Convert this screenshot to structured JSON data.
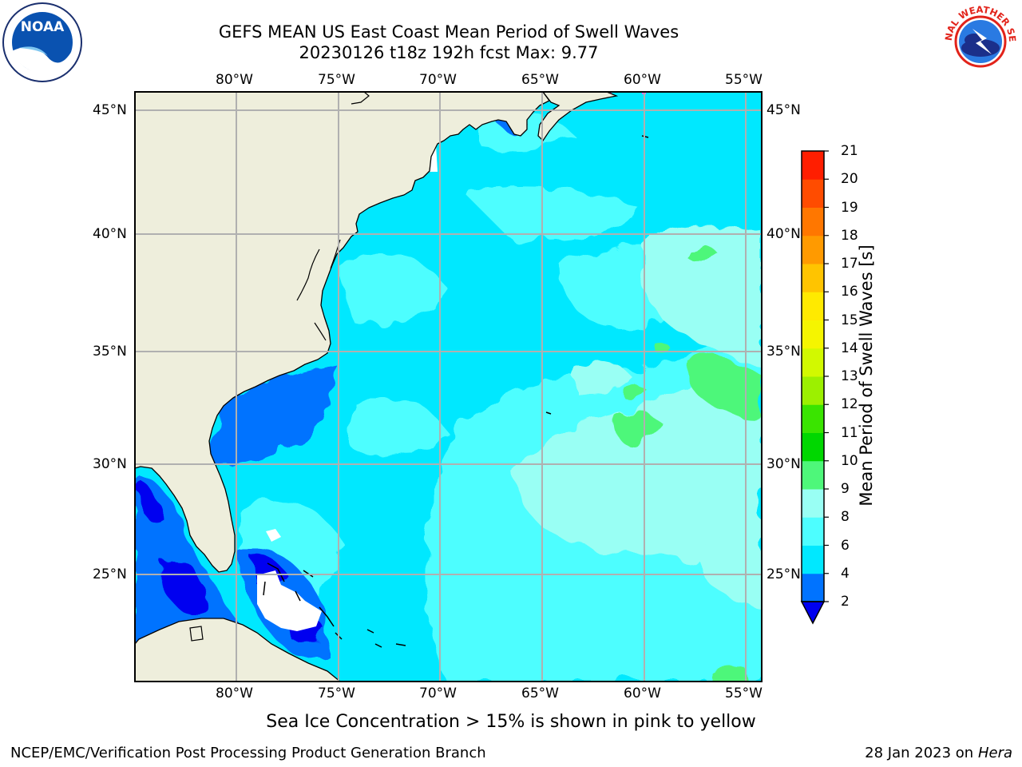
{
  "title": {
    "line1": "GEFS MEAN US East Coast Mean Period of Swell Waves",
    "line2": "20230126 t18z 192h fcst   Max: 9.77"
  },
  "map": {
    "lon_range": [
      -85,
      -54.2
    ],
    "lat_range": [
      20.5,
      46.3
    ],
    "lon_labels": [
      "80°W",
      "75°W",
      "70°W",
      "65°W",
      "60°W",
      "55°W"
    ],
    "lat_labels": [
      "45°N",
      "40°N",
      "35°N",
      "30°N",
      "25°N"
    ],
    "land_color": "#eeeedc",
    "grid_color": "#b0b0b0"
  },
  "colorbar": {
    "label": "Mean Period of Swell Waves [s]",
    "ticks": [
      "2",
      "4",
      "6",
      "8",
      "9",
      "10",
      "11",
      "12",
      "13",
      "14",
      "15",
      "16",
      "17",
      "18",
      "19",
      "20",
      "21"
    ],
    "colors": [
      "#0073ff",
      "#00e8ff",
      "#4dfeff",
      "#99fff4",
      "#4ef77a",
      "#00d700",
      "#3ae400",
      "#9cf000",
      "#d2f900",
      "#f5f500",
      "#ffea00",
      "#ffc400",
      "#ff9a00",
      "#ff7700",
      "#ff4c00",
      "#ff1e00"
    ],
    "under_color": "#0000f0"
  },
  "note": "Sea Ice Concentration > 15% is shown in pink to yellow",
  "footer": {
    "left": "NCEP/EMC/Verification Post Processing Product Generation Branch",
    "right_date": "28 Jan 2023 on ",
    "right_machine": "Hera"
  },
  "logos": {
    "noaa_text": "NOAA",
    "nws_text": "NATIONAL WEATHER SERVICE"
  }
}
